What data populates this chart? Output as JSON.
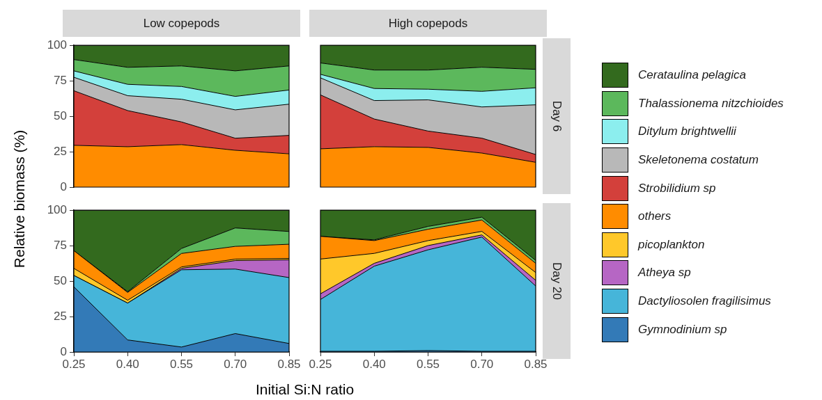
{
  "chart_data": [
    {
      "type": "area",
      "stacked": true,
      "title": "Low copepods",
      "ylabel": "Relative biomass (%)",
      "legend": "right",
      "x": [
        0.25,
        0.4,
        0.55,
        0.7,
        0.85
      ],
      "xlim": [
        0.25,
        0.85
      ],
      "ylim": [
        0,
        100
      ],
      "yticks": [
        0,
        25,
        50,
        75,
        100
      ],
      "tick_labels": "y",
      "grid": false,
      "series": [
        {
          "name": "others",
          "color": "#ff8c00",
          "values": [
            29.5,
            28.5,
            30,
            26,
            23.5
          ]
        },
        {
          "name": "Strobilidium sp",
          "color": "#d3403b",
          "values": [
            38.5,
            25.5,
            16,
            8.5,
            13
          ]
        },
        {
          "name": "Skeletonema costatum",
          "color": "#b8b8b8",
          "values": [
            9.5,
            10.5,
            16,
            20,
            22
          ]
        },
        {
          "name": "Ditylum brightwellii",
          "color": "#8ceeee",
          "values": [
            4.5,
            8,
            9,
            9.5,
            10
          ]
        },
        {
          "name": "Thalassionema nitzchioides",
          "color": "#5cb85c",
          "values": [
            8,
            12,
            14.5,
            18,
            17
          ]
        },
        {
          "name": "Cerataulina pelagica",
          "color": "#336a1e",
          "values": [
            10,
            15.5,
            14.5,
            18,
            14.5
          ]
        }
      ]
    },
    {
      "type": "area",
      "stacked": true,
      "title": "High copepods",
      "y2label": "Day 6",
      "legend": "right",
      "x": [
        0.25,
        0.4,
        0.55,
        0.7,
        0.85
      ],
      "xlim": [
        0.25,
        0.85
      ],
      "ylim": [
        0,
        100
      ],
      "tick_labels": false,
      "grid": false,
      "series": [
        {
          "name": "others",
          "color": "#ff8c00",
          "values": [
            27,
            28.5,
            28,
            24,
            17.5
          ]
        },
        {
          "name": "Strobilidium sp",
          "color": "#d3403b",
          "values": [
            38,
            19.5,
            11.5,
            10.5,
            5.5
          ]
        },
        {
          "name": "Skeletonema costatum",
          "color": "#b8b8b8",
          "values": [
            12,
            13,
            22,
            22,
            35
          ]
        },
        {
          "name": "Ditylum brightwellii",
          "color": "#8ceeee",
          "values": [
            2.5,
            8.5,
            7.5,
            11,
            12
          ]
        },
        {
          "name": "Thalassionema nitzchioides",
          "color": "#5cb85c",
          "values": [
            8,
            13,
            13.5,
            17,
            13
          ]
        },
        {
          "name": "Cerataulina pelagica",
          "color": "#336a1e",
          "values": [
            12.5,
            17.5,
            17.5,
            15.5,
            17
          ]
        }
      ]
    },
    {
      "type": "area",
      "stacked": true,
      "xlabel": "Initial Si:N ratio",
      "legend": "right",
      "x": [
        0.25,
        0.4,
        0.55,
        0.7,
        0.85
      ],
      "xlim": [
        0.25,
        0.85
      ],
      "ylim": [
        0,
        100
      ],
      "yticks": [
        0,
        25,
        50,
        75,
        100
      ],
      "xticks": [
        {
          "value": 0.25,
          "label": "0.25"
        },
        {
          "value": 0.4,
          "label": "0.40"
        },
        {
          "value": 0.55,
          "label": "0.55"
        },
        {
          "value": 0.7,
          "label": "0.70"
        },
        {
          "value": 0.85,
          "label": "0.85"
        }
      ],
      "grid": false,
      "series": [
        {
          "name": "Gymnodinium sp",
          "color": "#337ab7",
          "values": [
            46,
            8.5,
            3.5,
            13,
            6
          ]
        },
        {
          "name": "Dactyliosolen fragilisimus",
          "color": "#46b5d9",
          "values": [
            8,
            26,
            54.5,
            45.5,
            46.5
          ]
        },
        {
          "name": "Atheya sp",
          "color": "#b666c4",
          "values": [
            0,
            0,
            1,
            6,
            12.5
          ]
        },
        {
          "name": "picoplankton",
          "color": "#ffc82a",
          "values": [
            5,
            2,
            1,
            1,
            1
          ]
        },
        {
          "name": "others",
          "color": "#ff8c00",
          "values": [
            12.5,
            5.5,
            9.5,
            9,
            10
          ]
        },
        {
          "name": "Thalassionema nitzchioides",
          "color": "#5cb85c",
          "values": [
            0,
            0.5,
            3.5,
            13,
            9
          ]
        },
        {
          "name": "Cerataulina pelagica",
          "color": "#336a1e",
          "values": [
            28.5,
            57.5,
            27,
            12.5,
            15
          ]
        }
      ]
    },
    {
      "type": "area",
      "stacked": true,
      "y2label": "Day 20",
      "x": [
        0.25,
        0.4,
        0.55,
        0.7,
        0.85
      ],
      "xlim": [
        0.25,
        0.85
      ],
      "ylim": [
        0,
        100
      ],
      "xticks": [
        {
          "value": 0.25,
          "label": "0.25"
        },
        {
          "value": 0.4,
          "label": "0.40"
        },
        {
          "value": 0.55,
          "label": "0.55"
        },
        {
          "value": 0.7,
          "label": "0.70"
        },
        {
          "value": 0.85,
          "label": "0.85"
        }
      ],
      "tick_labels": "x",
      "grid": false,
      "series": [
        {
          "color": "#337ab7",
          "values": [
            0.5,
            0.5,
            1,
            0.5,
            0.5
          ]
        },
        {
          "color": "#46b5d9",
          "values": [
            36.5,
            60,
            71,
            80.5,
            46
          ]
        },
        {
          "color": "#b666c4",
          "values": [
            4,
            2,
            3,
            1.5,
            4
          ]
        },
        {
          "color": "#ffc82a",
          "values": [
            24.5,
            7,
            3.5,
            2.5,
            5.5
          ]
        },
        {
          "color": "#ff8c00",
          "values": [
            16,
            9,
            8,
            8,
            6.5
          ]
        },
        {
          "color": "#5cb85c",
          "values": [
            0,
            0.5,
            2,
            2,
            2
          ]
        },
        {
          "color": "#336a1e",
          "values": [
            18.5,
            21,
            11.5,
            5,
            35.5
          ]
        }
      ]
    }
  ]
}
